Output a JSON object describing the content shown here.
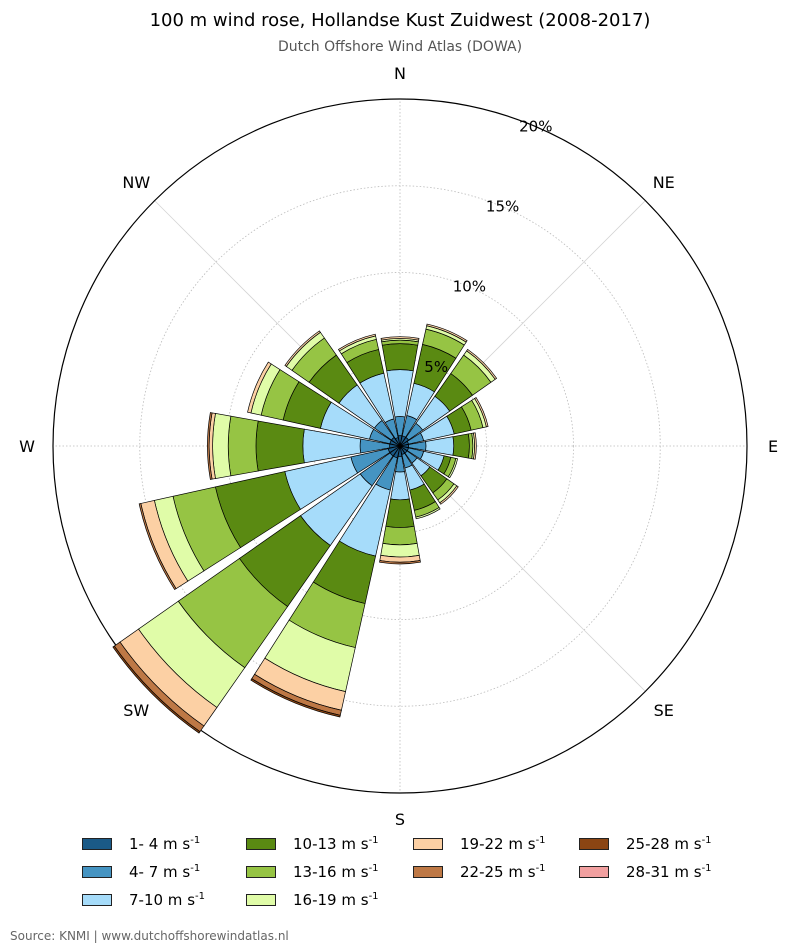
{
  "header": {
    "title": "100 m wind rose, Hollandse Kust Zuidwest (2008-2017)",
    "subtitle": "Dutch Offshore Wind Atlas (DOWA)"
  },
  "footer": {
    "source": "Source: KNMI | www.dutchoffshorewindatlas.nl"
  },
  "chart_data": {
    "type": "wind-rose",
    "title": "100 m wind rose, Hollandse Kust Zuidwest (2008-2017)",
    "subtitle": "Dutch Offshore Wind Atlas (DOWA)",
    "radial_unit": "%",
    "rlim": [
      0,
      20
    ],
    "radial_ticks": [
      "5%",
      "10%",
      "15%",
      "20%"
    ],
    "radial_tick_values": [
      5,
      10,
      15,
      20
    ],
    "direction_labels": [
      "N",
      "NE",
      "E",
      "SE",
      "S",
      "SW",
      "W",
      "NW"
    ],
    "direction_label_angles": [
      0,
      45,
      90,
      135,
      180,
      225,
      270,
      315
    ],
    "sector_centers_deg": [
      0,
      22.5,
      45,
      67.5,
      90,
      112.5,
      135,
      157.5,
      180,
      202.5,
      225,
      247.5,
      270,
      292.5,
      315,
      337.5
    ],
    "sector_width_deg": 20,
    "grid": true,
    "legend_position": "bottom",
    "speed_bins": [
      {
        "label": "1- 4 m s",
        "color": "#1a5a87"
      },
      {
        "label": "4- 7 m s",
        "color": "#4594c2"
      },
      {
        "label": "7-10 m s",
        "color": "#a6dcfa"
      },
      {
        "label": "10-13 m s",
        "color": "#5a8a12"
      },
      {
        "label": "13-16 m s",
        "color": "#96c444"
      },
      {
        "label": "16-19 m s",
        "color": "#e0fca8"
      },
      {
        "label": "19-22 m s",
        "color": "#fcd0a4"
      },
      {
        "label": "22-25 m s",
        "color": "#be7845"
      },
      {
        "label": "25-28 m s",
        "color": "#8b4513"
      },
      {
        "label": "28-31 m s",
        "color": "#f2a0a0"
      }
    ],
    "legend_unit_exponent": "-1",
    "cumulative_values": [
      [
        0.6,
        1.7,
        4.4,
        5.9,
        6.1,
        6.2,
        6.3,
        6.3,
        6.3,
        6.3
      ],
      [
        0.6,
        1.8,
        3.7,
        6.0,
        6.9,
        7.1,
        7.2,
        7.2,
        7.2,
        7.2
      ],
      [
        0.6,
        1.6,
        3.5,
        5.1,
        6.4,
        6.7,
        6.8,
        6.8,
        6.8,
        6.8
      ],
      [
        0.5,
        1.4,
        3.2,
        4.2,
        4.9,
        5.1,
        5.2,
        5.2,
        5.2,
        5.2
      ],
      [
        0.5,
        1.5,
        3.1,
        4.0,
        4.2,
        4.3,
        4.4,
        4.4,
        4.4,
        4.4
      ],
      [
        0.5,
        1.4,
        2.6,
        3.0,
        3.3,
        3.4,
        3.4,
        3.4,
        3.4,
        3.4
      ],
      [
        0.5,
        1.2,
        2.1,
        3.3,
        3.8,
        4.0,
        4.1,
        4.1,
        4.1,
        4.1
      ],
      [
        0.5,
        1.3,
        2.6,
        3.8,
        4.2,
        4.3,
        4.3,
        4.3,
        4.3,
        4.3
      ],
      [
        0.6,
        1.5,
        3.1,
        4.7,
        5.7,
        6.4,
        6.7,
        6.8,
        6.8,
        6.8
      ],
      [
        0.7,
        2.6,
        6.5,
        9.3,
        11.9,
        14.5,
        15.6,
        15.9,
        16.0,
        16.0
      ],
      [
        0.7,
        2.8,
        7.0,
        11.3,
        15.6,
        18.4,
        19.7,
        20.1,
        20.2,
        20.2
      ],
      [
        0.7,
        2.9,
        6.8,
        10.9,
        13.4,
        14.5,
        15.3,
        15.4,
        15.4,
        15.4
      ],
      [
        0.6,
        2.3,
        5.6,
        8.3,
        9.9,
        10.8,
        11.0,
        11.1,
        11.1,
        11.1
      ],
      [
        0.6,
        1.8,
        4.7,
        6.9,
        8.2,
        8.8,
        9.0,
        9.0,
        9.0,
        9.0
      ],
      [
        0.6,
        1.8,
        4.3,
        6.4,
        7.6,
        8.0,
        8.1,
        8.1,
        8.1,
        8.1
      ],
      [
        0.5,
        1.6,
        4.3,
        5.7,
        6.3,
        6.5,
        6.6,
        6.6,
        6.6,
        6.6
      ]
    ]
  }
}
